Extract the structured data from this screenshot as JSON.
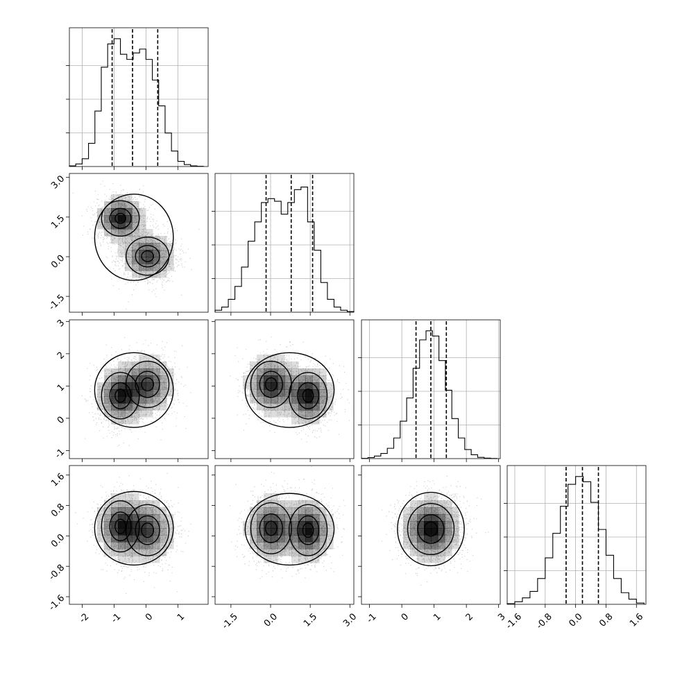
{
  "chart_data": {
    "type": "corner",
    "grid": true,
    "colors": {
      "line": "#000000",
      "grid": "#b0b0b0",
      "points": "#777777",
      "density": "#000000"
    },
    "params": [
      {
        "range": [
          -2.4,
          1.95
        ],
        "ticks": [
          -2,
          -1,
          0,
          1
        ],
        "tick_labels": [
          "-2",
          "-1",
          "0",
          "1"
        ],
        "quantiles": [
          -1.06,
          -0.42,
          0.37
        ],
        "modes": [
          {
            "c": -0.75,
            "s": 0.38,
            "w": 1
          },
          {
            "c": 0.05,
            "s": 0.42,
            "w": 1
          }
        ]
      },
      {
        "range": [
          -2.1,
          3.15
        ],
        "ticks": [
          -1.5,
          0.0,
          1.5,
          3.0
        ],
        "tick_labels": [
          "-1.5",
          "0.0",
          "1.5",
          "3.0"
        ],
        "quantiles": [
          -0.17,
          0.78,
          1.59
        ],
        "modes": [
          {
            "c": 1.42,
            "s": 0.45,
            "w": 1
          },
          {
            "c": 0.02,
            "s": 0.48,
            "w": 1
          }
        ]
      },
      {
        "range": [
          -1.25,
          3.05
        ],
        "ticks": [
          -1,
          0,
          1,
          2,
          3
        ],
        "tick_labels": [
          "-1",
          "0",
          "1",
          "2",
          "3"
        ],
        "quantiles": [
          0.44,
          0.9,
          1.38
        ],
        "modes": [
          {
            "c": 0.9,
            "s": 0.45,
            "w": 1
          }
        ]
      },
      {
        "range": [
          -1.8,
          1.85
        ],
        "ticks": [
          -1.6,
          -0.8,
          0.0,
          0.8,
          1.6
        ],
        "tick_labels": [
          "-1.6",
          "-0.8",
          "0.0",
          "0.8",
          "1.6"
        ],
        "quantiles": [
          -0.25,
          0.18,
          0.6
        ],
        "modes": [
          {
            "c": 0.18,
            "s": 0.42,
            "w": 1
          }
        ]
      }
    ],
    "diagonal_histograms": [
      {
        "bins": [
          -2.4,
          -2.2,
          -2.0,
          -1.8,
          -1.6,
          -1.4,
          -1.2,
          -1.0,
          -0.8,
          -0.6,
          -0.4,
          -0.2,
          0.0,
          0.2,
          0.4,
          0.6,
          0.8,
          1.0,
          1.2,
          1.4,
          1.6,
          1.8
        ],
        "counts": [
          0.005,
          0.02,
          0.06,
          0.18,
          0.43,
          0.77,
          0.95,
          0.99,
          0.87,
          0.83,
          0.88,
          0.91,
          0.83,
          0.67,
          0.47,
          0.26,
          0.12,
          0.04,
          0.015,
          0.005,
          0.002
        ]
      },
      {
        "bins": [
          -2.1,
          -1.85,
          -1.6,
          -1.35,
          -1.1,
          -0.85,
          -0.6,
          -0.35,
          -0.1,
          0.15,
          0.4,
          0.65,
          0.9,
          1.15,
          1.4,
          1.65,
          1.9,
          2.15,
          2.4,
          2.65,
          2.9,
          3.15
        ],
        "counts": [
          0.015,
          0.04,
          0.1,
          0.2,
          0.35,
          0.55,
          0.7,
          0.85,
          0.88,
          0.86,
          0.76,
          0.85,
          0.95,
          0.97,
          0.7,
          0.48,
          0.23,
          0.1,
          0.04,
          0.015,
          0.005
        ]
      },
      {
        "bins": [
          -1.25,
          -1.05,
          -0.85,
          -0.65,
          -0.45,
          -0.25,
          -0.05,
          0.15,
          0.35,
          0.55,
          0.75,
          0.95,
          1.15,
          1.35,
          1.55,
          1.75,
          1.95,
          2.15,
          2.35,
          2.55,
          2.75,
          2.95
        ],
        "counts": [
          0.002,
          0.008,
          0.02,
          0.04,
          0.08,
          0.16,
          0.29,
          0.47,
          0.7,
          0.92,
          0.99,
          0.95,
          0.76,
          0.53,
          0.31,
          0.16,
          0.07,
          0.03,
          0.01,
          0.004,
          0.001
        ]
      },
      {
        "bins": [
          -1.8,
          -1.6,
          -1.4,
          -1.2,
          -1.0,
          -0.8,
          -0.6,
          -0.4,
          -0.2,
          0.0,
          0.2,
          0.4,
          0.6,
          0.8,
          1.0,
          1.2,
          1.4,
          1.6,
          1.8
        ],
        "counts": [
          0.005,
          0.02,
          0.05,
          0.1,
          0.2,
          0.36,
          0.55,
          0.76,
          0.93,
          0.99,
          0.95,
          0.79,
          0.58,
          0.38,
          0.2,
          0.09,
          0.04,
          0.01
        ]
      }
    ]
  }
}
